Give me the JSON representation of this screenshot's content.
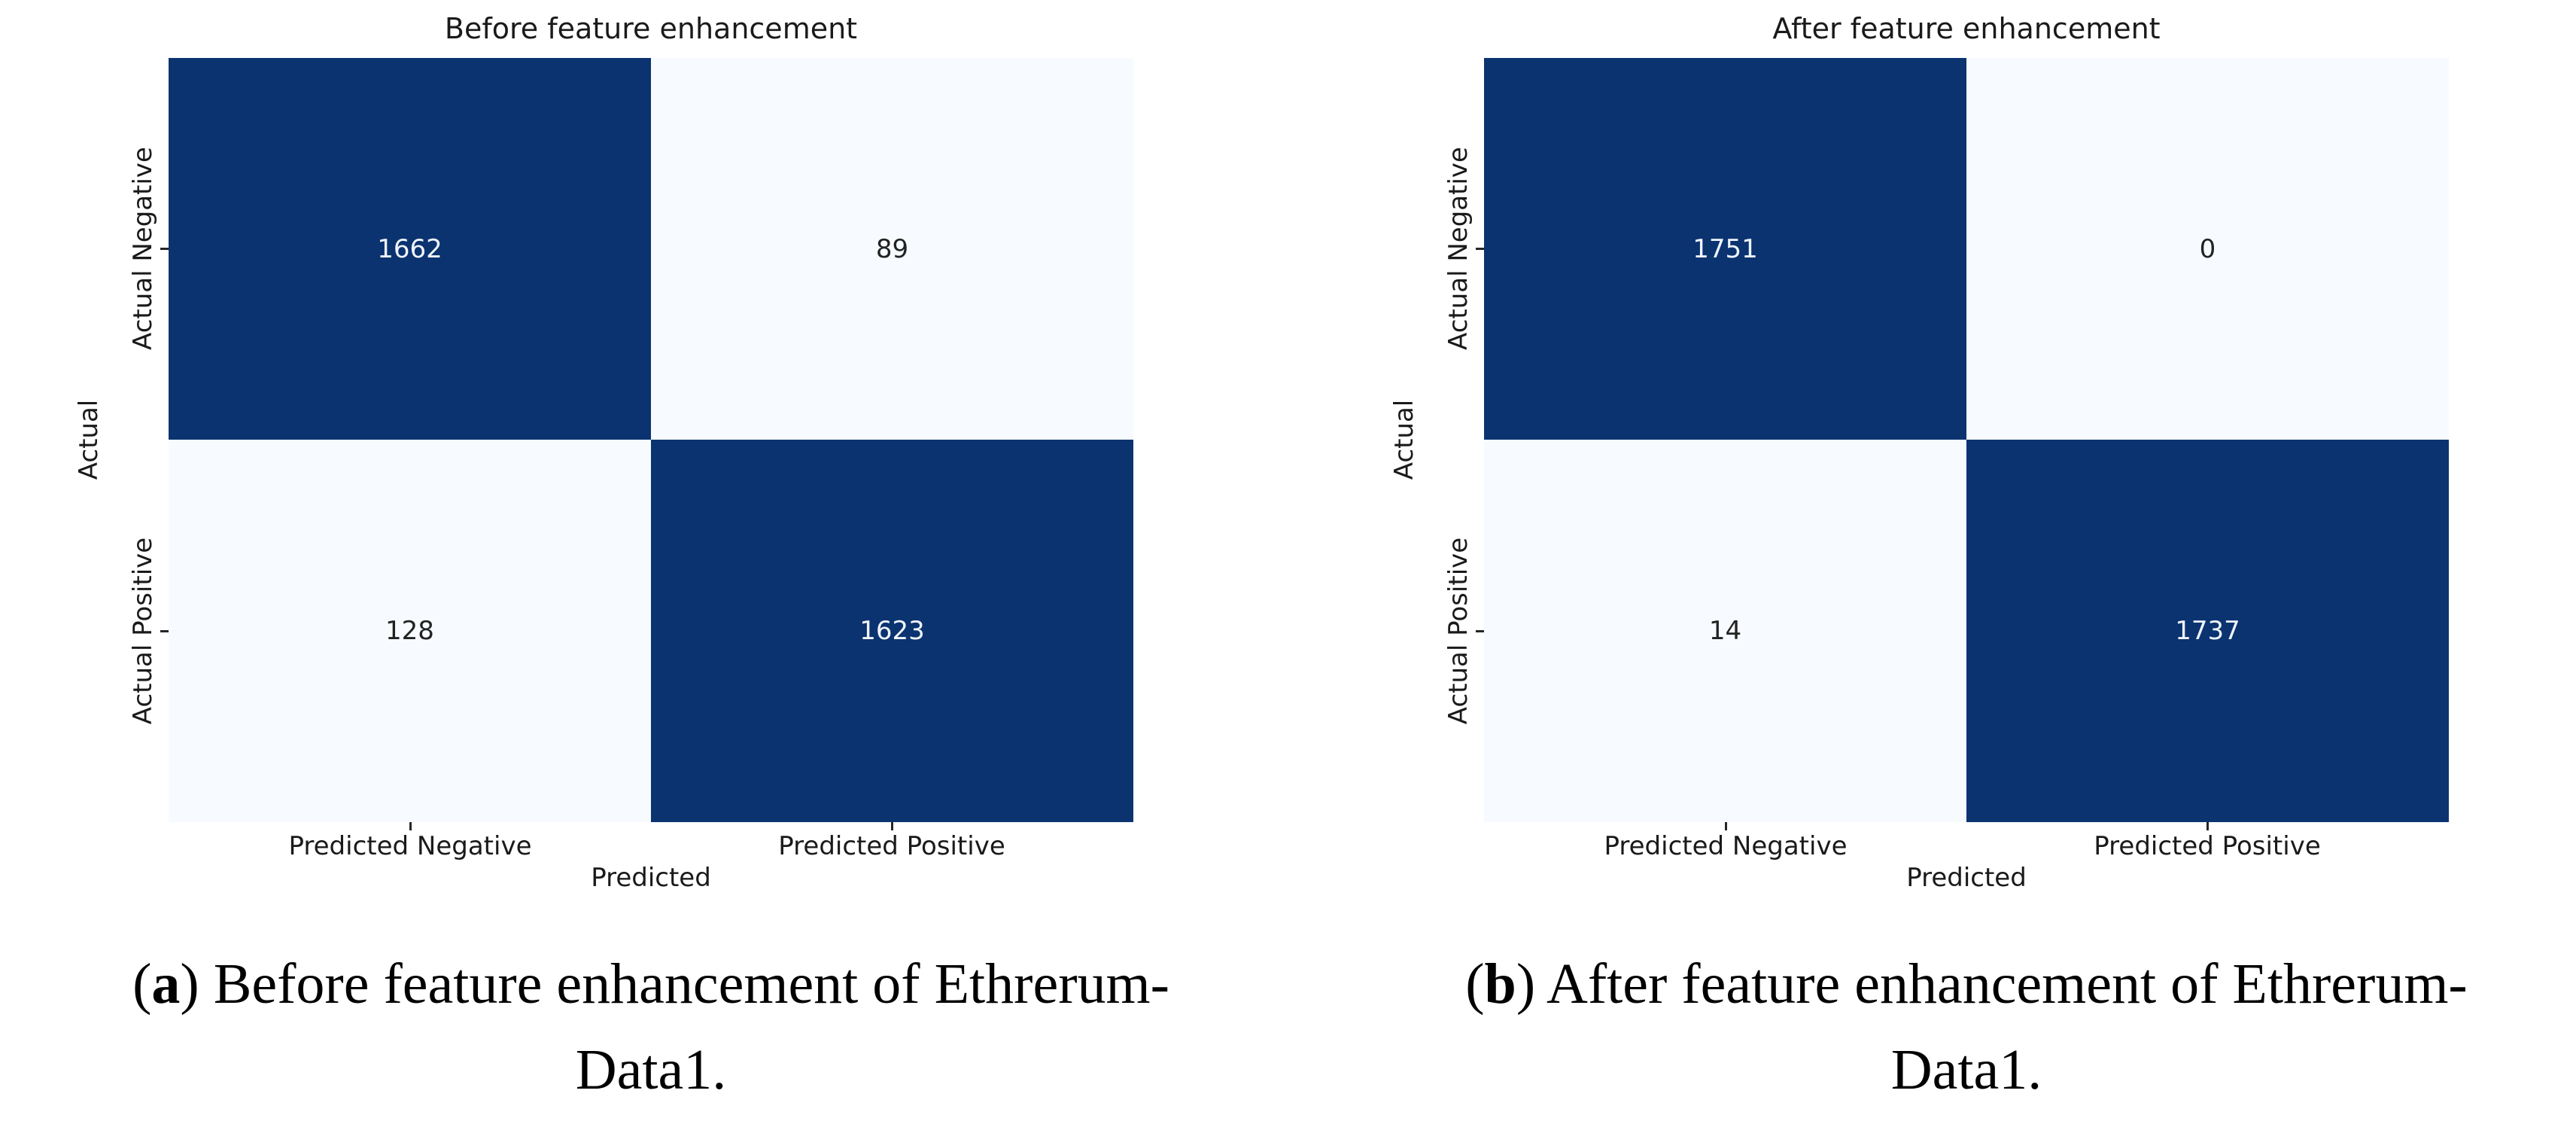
{
  "chart_data": [
    {
      "type": "heatmap",
      "title": "Before feature enhancement",
      "xlabel": "Predicted",
      "ylabel": "Actual",
      "x_tick_labels": [
        "Predicted Negative",
        "Predicted Positive"
      ],
      "y_tick_labels": [
        "Actual Negative",
        "Actual Positive"
      ],
      "values": [
        [
          1662,
          89
        ],
        [
          128,
          1623
        ]
      ],
      "colormap": "Blues",
      "color_dark_cell": "#0a3370",
      "color_light_cell": "#f7fbff",
      "grid": "off",
      "legend": "none",
      "caption": {
        "open": "(",
        "letter": "a",
        "close": ")",
        "line1_rest": " Before feature enhancement of Ethrerum-",
        "line2": "Data1."
      }
    },
    {
      "type": "heatmap",
      "title": "After feature enhancement",
      "xlabel": "Predicted",
      "ylabel": "Actual",
      "x_tick_labels": [
        "Predicted Negative",
        "Predicted Positive"
      ],
      "y_tick_labels": [
        "Actual Negative",
        "Actual Positive"
      ],
      "values": [
        [
          1751,
          0
        ],
        [
          14,
          1737
        ]
      ],
      "colormap": "Blues",
      "color_dark_cell": "#0a3370",
      "color_light_cell": "#f7fbff",
      "grid": "off",
      "legend": "none",
      "caption": {
        "open": "(",
        "letter": "b",
        "close": ")",
        "line1_rest": " After feature enhancement of Ethrerum-",
        "line2": "Data1."
      }
    }
  ]
}
